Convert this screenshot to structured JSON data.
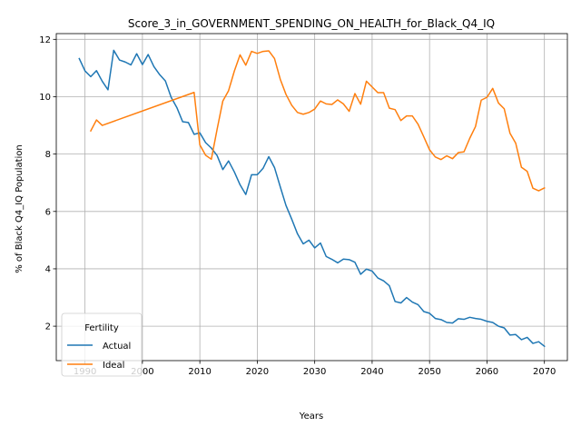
{
  "chart_data": {
    "type": "line",
    "title": "Score_3_in_GOVERNMENT_SPENDING_ON_HEALTH_for_Black_Q4_IQ",
    "xlabel": "Years",
    "ylabel": "% of Black Q4_IQ Population",
    "xlim": [
      1985,
      2074
    ],
    "ylim": [
      0.8,
      12.2
    ],
    "xticks": [
      1990,
      2000,
      2010,
      2020,
      2030,
      2040,
      2050,
      2060,
      2070
    ],
    "yticks": [
      2,
      4,
      6,
      8,
      10,
      12
    ],
    "grid": true,
    "legend": {
      "title": "Fertility",
      "placement": "lower-left"
    },
    "series": [
      {
        "name": "Actual",
        "color": "#1f77b4",
        "x": [
          1989,
          1990,
          1991,
          1992,
          1993,
          1994,
          1995,
          1996,
          1997,
          1998,
          1999,
          2000,
          2001,
          2002,
          2003,
          2004,
          2005,
          2006,
          2007,
          2008,
          2009,
          2010,
          2011,
          2012,
          2013,
          2014,
          2015,
          2016,
          2017,
          2018,
          2019,
          2020,
          2021,
          2022,
          2023,
          2024,
          2025,
          2026,
          2027,
          2028,
          2029,
          2030,
          2031,
          2032,
          2033,
          2034,
          2035,
          2036,
          2037,
          2038,
          2039,
          2040,
          2041,
          2042,
          2043,
          2044,
          2045,
          2046,
          2047,
          2048,
          2049,
          2050,
          2051,
          2052,
          2053,
          2054,
          2055,
          2056,
          2057,
          2058,
          2059,
          2060,
          2061,
          2062,
          2063,
          2064,
          2065,
          2066,
          2067,
          2068,
          2069,
          2070
        ],
        "values": [
          11.33,
          10.9,
          10.7,
          10.91,
          10.54,
          10.24,
          11.62,
          11.28,
          11.21,
          11.11,
          11.5,
          11.12,
          11.47,
          11.05,
          10.77,
          10.55,
          9.98,
          9.62,
          9.13,
          9.1,
          8.69,
          8.74,
          8.4,
          8.21,
          7.95,
          7.46,
          7.76,
          7.38,
          6.93,
          6.59,
          7.28,
          7.28,
          7.5,
          7.91,
          7.53,
          6.86,
          6.21,
          5.73,
          5.22,
          4.87,
          5.0,
          4.73,
          4.9,
          4.43,
          4.33,
          4.21,
          4.34,
          4.32,
          4.23,
          3.81,
          3.99,
          3.92,
          3.68,
          3.58,
          3.41,
          2.86,
          2.81,
          3.0,
          2.84,
          2.75,
          2.51,
          2.45,
          2.27,
          2.23,
          2.13,
          2.11,
          2.26,
          2.24,
          2.31,
          2.27,
          2.24,
          2.17,
          2.13,
          2.0,
          1.94,
          1.69,
          1.71,
          1.53,
          1.61,
          1.4,
          1.46,
          1.3
        ]
      },
      {
        "name": "Ideal",
        "color": "#ff7f0e",
        "x": [
          1991,
          1992,
          1993,
          2009,
          2010,
          2011,
          2012,
          2013,
          2014,
          2015,
          2016,
          2017,
          2018,
          2019,
          2020,
          2021,
          2022,
          2023,
          2024,
          2025,
          2026,
          2027,
          2028,
          2029,
          2030,
          2031,
          2032,
          2033,
          2034,
          2035,
          2036,
          2037,
          2038,
          2039,
          2040,
          2041,
          2042,
          2043,
          2044,
          2045,
          2046,
          2047,
          2048,
          2049,
          2050,
          2051,
          2052,
          2053,
          2054,
          2055,
          2056,
          2057,
          2058,
          2059,
          2060,
          2061,
          2062,
          2063,
          2064,
          2065,
          2066,
          2067,
          2068,
          2069,
          2070
        ],
        "values": [
          8.81,
          9.19,
          9.0,
          10.15,
          8.32,
          7.96,
          7.82,
          8.86,
          9.85,
          10.21,
          10.89,
          11.46,
          11.1,
          11.58,
          11.51,
          11.58,
          11.6,
          11.33,
          10.61,
          10.08,
          9.7,
          9.45,
          9.39,
          9.45,
          9.57,
          9.85,
          9.75,
          9.73,
          9.89,
          9.75,
          9.49,
          10.11,
          9.74,
          10.54,
          10.34,
          10.14,
          10.14,
          9.6,
          9.55,
          9.17,
          9.33,
          9.33,
          9.04,
          8.6,
          8.15,
          7.9,
          7.81,
          7.94,
          7.84,
          8.05,
          8.08,
          8.55,
          8.96,
          9.88,
          9.98,
          10.29,
          9.78,
          9.58,
          8.73,
          8.38,
          7.54,
          7.4,
          6.81,
          6.72,
          6.82
        ]
      }
    ]
  }
}
